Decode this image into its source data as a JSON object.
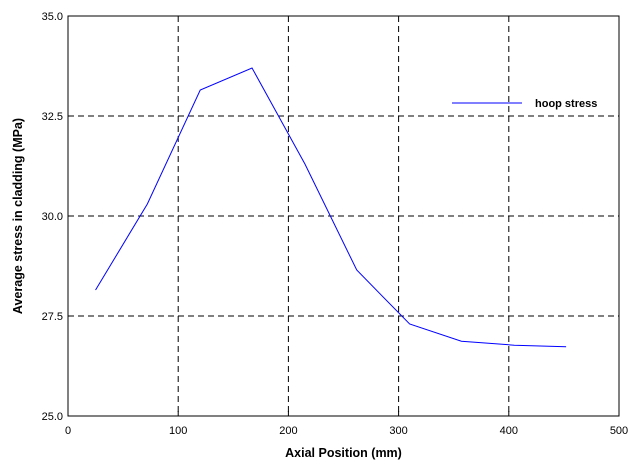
{
  "chart_data": {
    "type": "line",
    "xlabel": "Axial Position (mm)",
    "ylabel": "Average stress in cladding (MPa)",
    "xlim": [
      0,
      500
    ],
    "ylim": [
      25.0,
      35.0
    ],
    "x_ticks": [
      "0",
      "100",
      "200",
      "300",
      "400",
      "500"
    ],
    "y_ticks": [
      "25.0",
      "27.5",
      "30.0",
      "32.5",
      "35.0"
    ],
    "grid": true,
    "legend_position": "top-right",
    "series": [
      {
        "name": "hoop stress",
        "color": "#0000ff",
        "x": [
          25,
          72,
          120,
          167,
          215,
          262,
          310,
          357,
          405,
          452
        ],
        "y": [
          28.15,
          30.3,
          33.15,
          33.7,
          31.3,
          28.65,
          27.3,
          26.87,
          26.77,
          26.73
        ]
      }
    ]
  }
}
